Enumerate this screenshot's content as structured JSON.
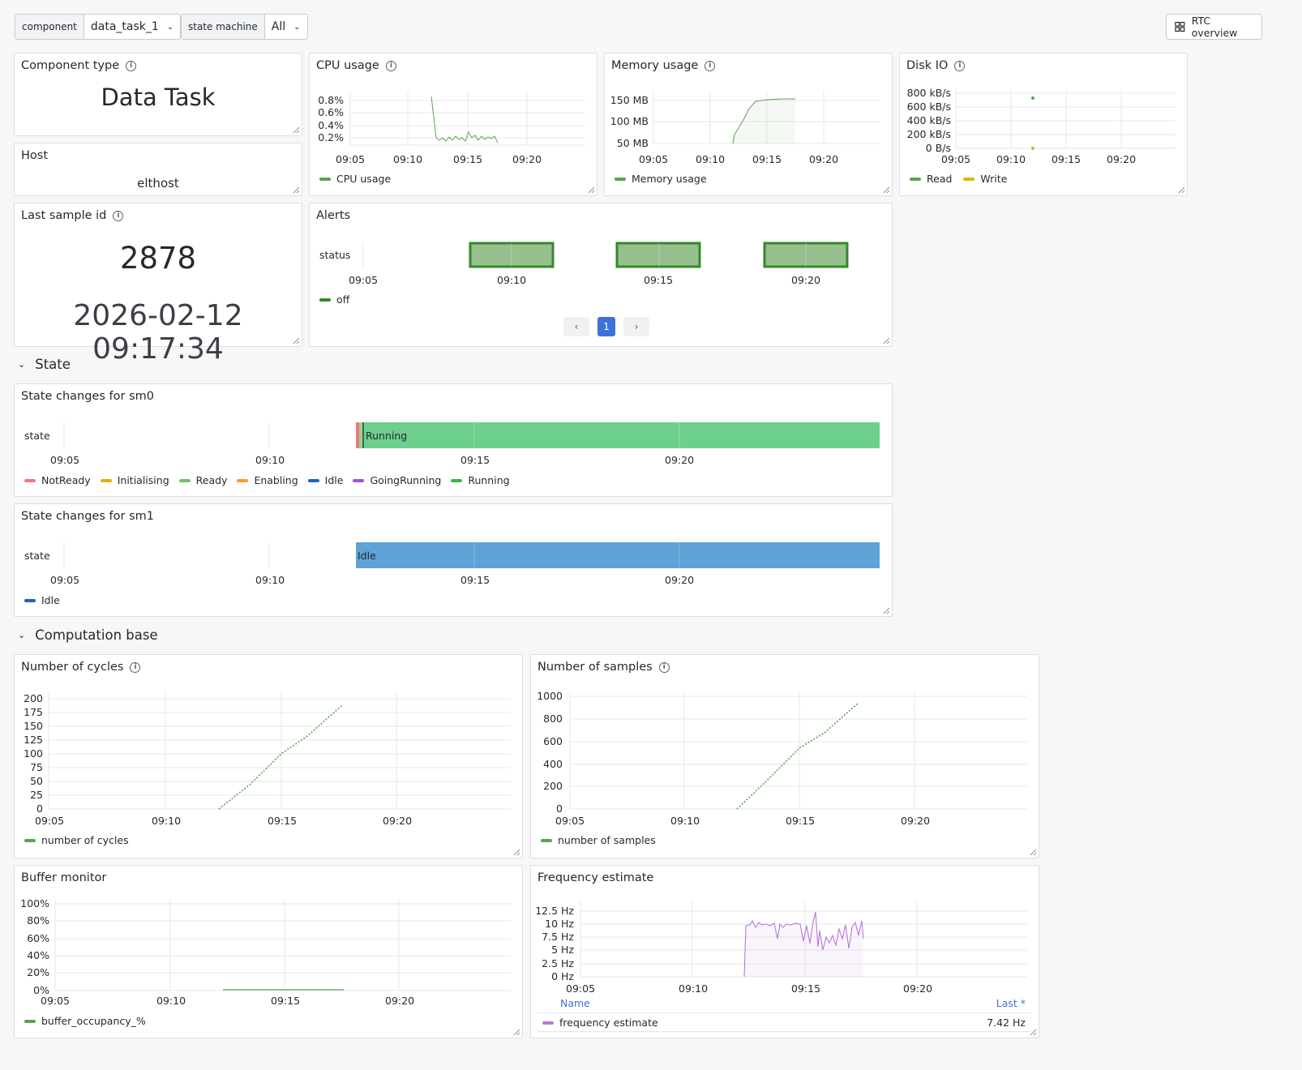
{
  "variables": [
    {
      "label": "component",
      "value": "data_task_1"
    },
    {
      "label": "state machine",
      "value": "All"
    }
  ],
  "rtc_button": {
    "label": "RTC overview",
    "icon": "grid-icon"
  },
  "component_type": {
    "title": "Component type",
    "value": "Data Task"
  },
  "host": {
    "title": "Host",
    "value": "elthost"
  },
  "last_sample": {
    "title": "Last sample id",
    "id": "2878",
    "time": "2026-02-12 09:17:34"
  },
  "cpu": {
    "title": "CPU usage",
    "yticks": [
      "0.8%",
      "0.6%",
      "0.4%",
      "0.2%"
    ],
    "xticks": [
      "09:05",
      "09:10",
      "09:15",
      "09:20"
    ],
    "legend": "CPU usage",
    "color": "#56a64b"
  },
  "memory": {
    "title": "Memory usage",
    "yticks": [
      "150 MB",
      "100 MB",
      "50 MB"
    ],
    "xticks": [
      "09:05",
      "09:10",
      "09:15",
      "09:20"
    ],
    "legend": "Memory usage",
    "color": "#56a64b"
  },
  "disk": {
    "title": "Disk IO",
    "yticks": [
      "800 kB/s",
      "600 kB/s",
      "400 kB/s",
      "200 kB/s",
      "0 B/s"
    ],
    "xticks": [
      "09:05",
      "09:10",
      "09:15",
      "09:20"
    ],
    "legend": [
      "Read",
      "Write"
    ],
    "colors": [
      "#56a64b",
      "#e0b400"
    ]
  },
  "alerts": {
    "title": "Alerts",
    "row": "status",
    "xticks": [
      "09:05",
      "09:10",
      "09:15",
      "09:20"
    ],
    "legend": "off",
    "color": "#37872d",
    "page": "1"
  },
  "state_section": "State",
  "sm0": {
    "title": "State changes for sm0",
    "row": "state",
    "bar_label": "Running",
    "xticks": [
      "09:05",
      "09:10",
      "09:15",
      "09:20"
    ],
    "legend": [
      {
        "name": "NotReady",
        "color": "#f2495c"
      },
      {
        "name": "Initialising",
        "color": "#e0b400"
      },
      {
        "name": "Ready",
        "color": "#73bf69"
      },
      {
        "name": "Enabling",
        "color": "#ff9830"
      },
      {
        "name": "Idle",
        "color": "#1f60c4"
      },
      {
        "name": "GoingRunning",
        "color": "#a352cc"
      },
      {
        "name": "Running",
        "color": "#3cb54a"
      }
    ]
  },
  "sm1": {
    "title": "State changes for sm1",
    "row": "state",
    "bar_label": "Idle",
    "xticks": [
      "09:05",
      "09:10",
      "09:15",
      "09:20"
    ],
    "legend": [
      {
        "name": "Idle",
        "color": "#1f60c4"
      }
    ]
  },
  "computation_section": "Computation base",
  "cycles": {
    "title": "Number of cycles",
    "yticks": [
      "200",
      "175",
      "150",
      "125",
      "100",
      "75",
      "50",
      "25",
      "0"
    ],
    "xticks": [
      "09:05",
      "09:10",
      "09:15",
      "09:20"
    ],
    "legend": "number of cycles",
    "color": "#56a64b"
  },
  "samples": {
    "title": "Number of samples",
    "yticks": [
      "1000",
      "800",
      "600",
      "400",
      "200",
      "0"
    ],
    "xticks": [
      "09:05",
      "09:10",
      "09:15",
      "09:20"
    ],
    "legend": "number of samples",
    "color": "#56a64b"
  },
  "buffer": {
    "title": "Buffer monitor",
    "yticks": [
      "100%",
      "80%",
      "60%",
      "40%",
      "20%",
      "0%"
    ],
    "xticks": [
      "09:05",
      "09:10",
      "09:15",
      "09:20"
    ],
    "legend": "buffer_occupancy_%",
    "color": "#56a64b"
  },
  "frequency": {
    "title": "Frequency estimate",
    "yticks": [
      "12.5 Hz",
      "10 Hz",
      "7.5 Hz",
      "5 Hz",
      "2.5 Hz",
      "0 Hz"
    ],
    "xticks": [
      "09:05",
      "09:10",
      "09:15",
      "09:20"
    ],
    "table_headers": [
      "Name",
      "Last *"
    ],
    "series": "frequency estimate",
    "last": "7.42 Hz",
    "color": "#b877d9"
  }
}
